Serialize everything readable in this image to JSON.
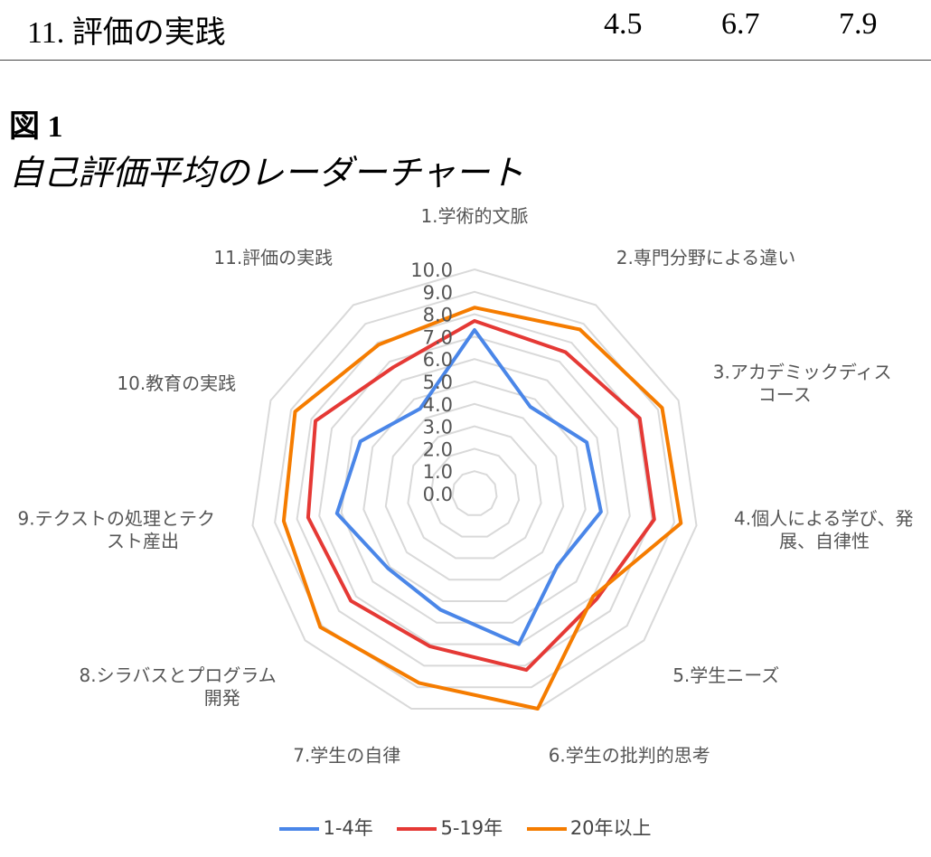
{
  "table_row": {
    "label": "11.  評価の実践",
    "values": [
      "4.5",
      "6.7",
      "7.9"
    ]
  },
  "figure": {
    "number": "図 1",
    "title": "自己評価平均のレーダーチャート"
  },
  "chart_data": {
    "type": "radar",
    "categories": [
      "1.学術的文脈",
      "2.専門分野による違い",
      "3.アカデミックディスコース",
      "4.個人による学び、発展、自律性",
      "5.学生ニーズ",
      "6.学生の批判的思考",
      "7.学生の自律",
      "8.シラバスとプログラム開発",
      "9.テクストの処理とテクスト産出",
      "10.教育の実践",
      "11.評価の実践"
    ],
    "category_label_lines": [
      [
        "1.学術的文脈"
      ],
      [
        "2.専門分野による違い"
      ],
      [
        "3.アカデミックディス",
        "コース"
      ],
      [
        "4.個人による学び、発",
        "展、自律性"
      ],
      [
        "5.学生ニーズ"
      ],
      [
        "6.学生の批判的思考"
      ],
      [
        "7.学生の自律"
      ],
      [
        "8.シラバスとプログラム",
        "開発"
      ],
      [
        "9.テクストの処理とテク",
        "スト産出"
      ],
      [
        "10.教育の実践"
      ],
      [
        "11.評価の実践"
      ]
    ],
    "rlim": [
      0,
      10
    ],
    "ticks": [
      "0.0",
      "1.0",
      "2.0",
      "3.0",
      "4.0",
      "5.0",
      "6.0",
      "7.0",
      "8.0",
      "9.0",
      "10.0"
    ],
    "grid": true,
    "legend_position": "bottom",
    "series": [
      {
        "name": "1-4年",
        "color": "#4a86e8",
        "values": [
          7.3,
          4.6,
          5.5,
          5.7,
          4.9,
          7.0,
          5.4,
          5.1,
          6.2,
          5.6,
          4.5
        ]
      },
      {
        "name": "5-19年",
        "color": "#e53935",
        "values": [
          7.7,
          7.5,
          8.1,
          8.1,
          7.2,
          8.2,
          7.1,
          7.3,
          7.5,
          7.8,
          6.7
        ]
      },
      {
        "name": "20年以上",
        "color": "#f57c00",
        "values": [
          8.3,
          8.7,
          9.2,
          9.3,
          7.0,
          10.0,
          8.8,
          9.1,
          8.6,
          8.8,
          7.9
        ]
      }
    ]
  }
}
